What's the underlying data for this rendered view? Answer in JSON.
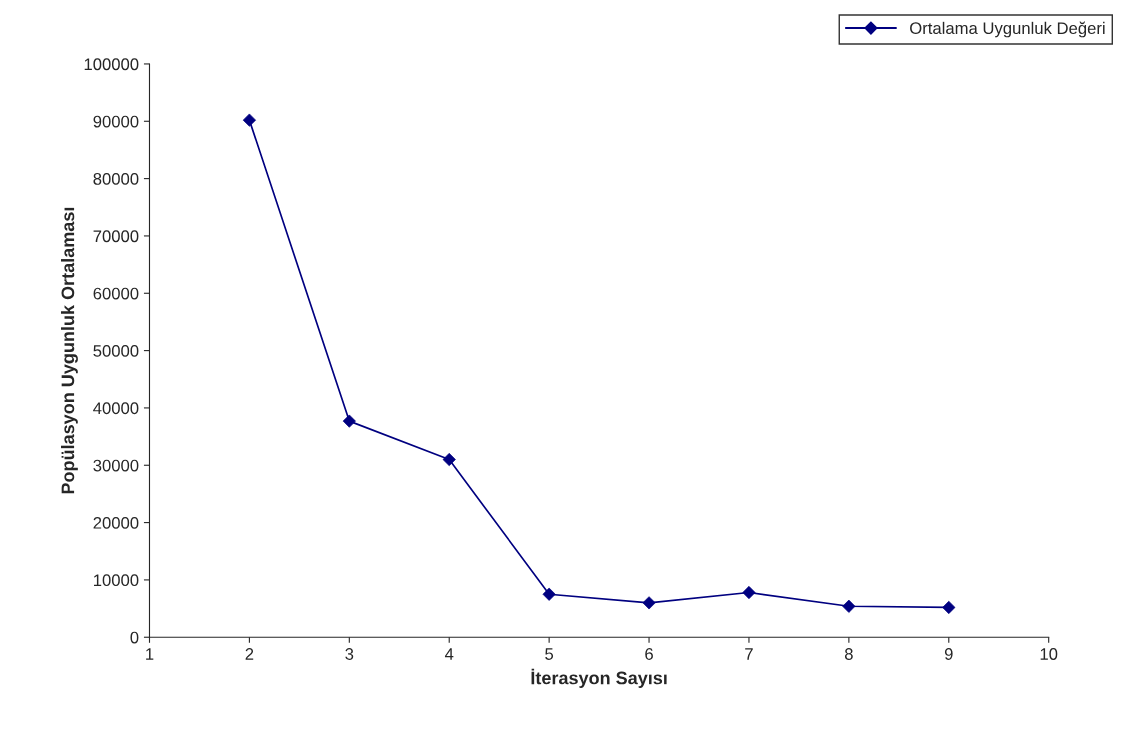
{
  "chart_data": {
    "type": "line",
    "xlabel": "İterasyon Sayısı",
    "ylabel": "Popülasyon Uygunluk Ortalaması",
    "x": [
      2,
      3,
      4,
      5,
      6,
      7,
      8,
      9
    ],
    "series": [
      {
        "name": "Ortalama Uygunluk Değeri",
        "color": "#000080",
        "values": [
          90200,
          37700,
          31000,
          7500,
          6000,
          7800,
          5400,
          5200
        ]
      }
    ],
    "xlim": [
      1,
      10
    ],
    "xticks": [
      1,
      2,
      3,
      4,
      5,
      6,
      7,
      8,
      9,
      10
    ],
    "ylim": [
      0,
      100000
    ],
    "yticks": [
      0,
      10000,
      20000,
      30000,
      40000,
      50000,
      60000,
      70000,
      80000,
      90000,
      100000
    ],
    "marker": "diamond",
    "line_style": "solid",
    "grid": false,
    "legend": "top right"
  }
}
